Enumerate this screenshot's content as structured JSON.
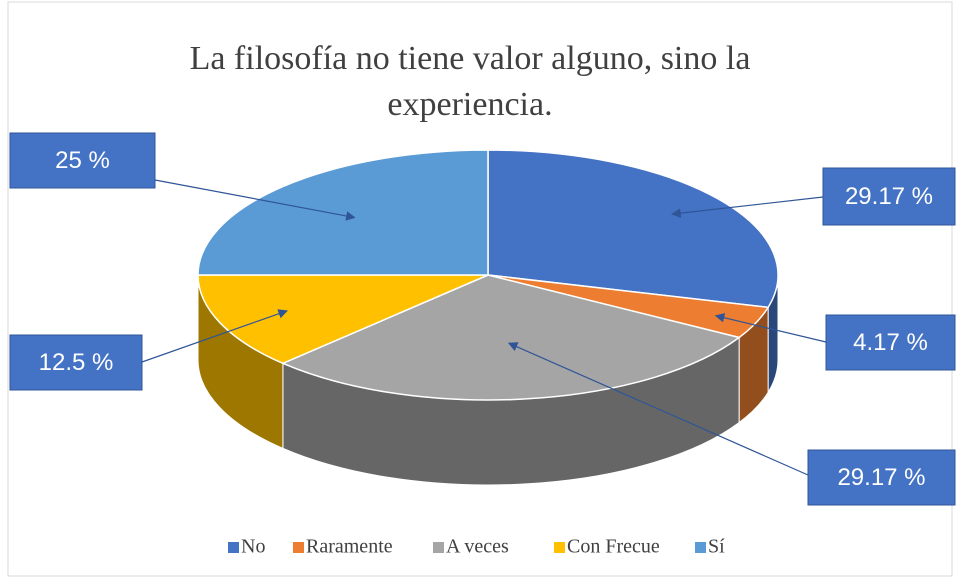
{
  "chart_data": {
    "type": "pie",
    "title": "La filosofía no tiene valor alguno, sino la experiencia.",
    "categories": [
      "No",
      "Raramente",
      "A veces",
      "Con Frecue",
      "Sí"
    ],
    "values": [
      29.17,
      4.17,
      29.17,
      12.5,
      25
    ],
    "value_labels": [
      "29.17 %",
      "4.17 %",
      "29.17 %",
      "12.5 %",
      "25 %"
    ],
    "colors": [
      "#4472c4",
      "#ed7d31",
      "#a5a5a5",
      "#ffc000",
      "#5b9bd5"
    ],
    "legend": "bottom"
  }
}
